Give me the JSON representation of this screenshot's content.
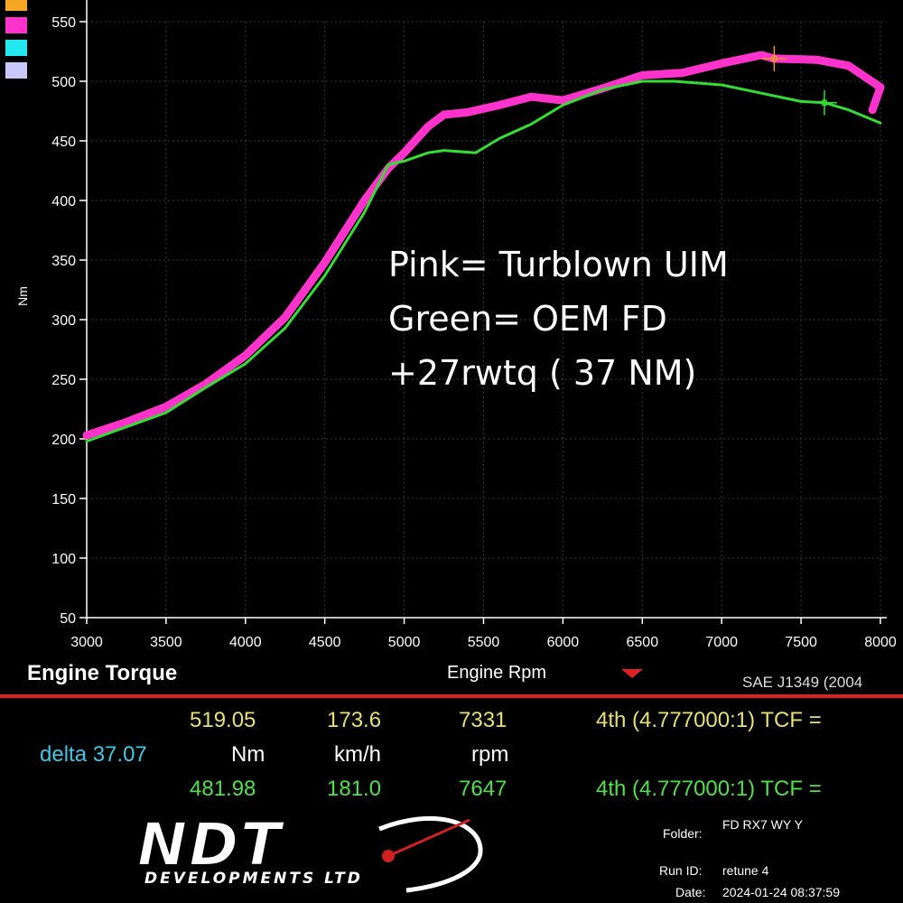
{
  "colors": {
    "pink": "#ff33cc",
    "green": "#33dd33",
    "readout_yellow": "#e6e070",
    "readout_green": "#4fe04a",
    "delta_cyan": "#3ec8e8",
    "divider_red": "#e02020",
    "legend_swatches": [
      "#f5a623",
      "#ff33cc",
      "#22e8f0",
      "#c8c8ff"
    ]
  },
  "chart_data": {
    "type": "line",
    "ylabel": "Nm",
    "xlim": [
      3000,
      8000
    ],
    "ylim": [
      50,
      560
    ],
    "x_ticks": [
      3000,
      3500,
      4000,
      4500,
      5000,
      5500,
      6000,
      6500,
      7000,
      7500,
      8000
    ],
    "y_ticks": [
      50,
      100,
      150,
      200,
      250,
      300,
      350,
      400,
      450,
      500,
      550
    ],
    "grid": true,
    "series": [
      {
        "color": "#ff33cc",
        "x": [
          3000,
          3250,
          3500,
          3750,
          4000,
          4250,
          4500,
          4750,
          4900,
          5000,
          5150,
          5250,
          5400,
          5600,
          5800,
          6000,
          6250,
          6500,
          6750,
          7000,
          7250,
          7330,
          7600,
          7800,
          8000,
          7950
        ],
        "y": [
          203,
          214,
          227,
          246,
          270,
          302,
          348,
          400,
          427,
          440,
          462,
          472,
          474,
          480,
          487,
          484,
          494,
          505,
          507,
          515,
          522,
          519,
          518,
          513,
          495,
          476
        ]
      },
      {
        "color": "#33dd33",
        "x": [
          3000,
          3250,
          3500,
          3750,
          4000,
          4250,
          4500,
          4750,
          4900,
          5000,
          5150,
          5250,
          5450,
          5600,
          5800,
          6000,
          6250,
          6500,
          6700,
          7000,
          7250,
          7500,
          7650,
          7800,
          8000
        ],
        "y": [
          198,
          210,
          222,
          243,
          263,
          293,
          337,
          390,
          430,
          433,
          440,
          442,
          440,
          452,
          464,
          480,
          493,
          500,
          500,
          497,
          490,
          483,
          482,
          476,
          465
        ]
      }
    ],
    "markers": [
      {
        "x": 7331,
        "y": 519.05,
        "color": "#e89a30"
      },
      {
        "x": 7647,
        "y": 481.98,
        "color": "#33dd33"
      }
    ],
    "annotations": [
      "Pink= Turblown UIM",
      "Green= OEM FD",
      "+27rwtq ( 37 NM)"
    ]
  },
  "footer": {
    "title": "Engine Torque",
    "x_axis_label": "Engine Rpm",
    "standard": "SAE J1349 (2004",
    "delta_label": "delta 37.07",
    "units": {
      "torque": "Nm",
      "speed": "km/h",
      "rpm": "rpm"
    },
    "row_pink": {
      "torque": "519.05",
      "speed": "173.6",
      "rpm": "7331",
      "gear": "4th (4.777000:1) TCF ="
    },
    "row_green": {
      "torque": "481.98",
      "speed": "181.0",
      "rpm": "7647",
      "gear": "4th (4.777000:1) TCF ="
    }
  },
  "branding": {
    "logo_main": "NDT",
    "logo_sub": "DEVELOPMENTS LTD"
  },
  "run_info": {
    "folder_label": "Folder:",
    "folder_value": "FD RX7 WY Y",
    "run_label": "Run ID:",
    "run_value": "retune 4",
    "date_label": "Date:",
    "date_value": "2024-01-24 08:37:59"
  }
}
